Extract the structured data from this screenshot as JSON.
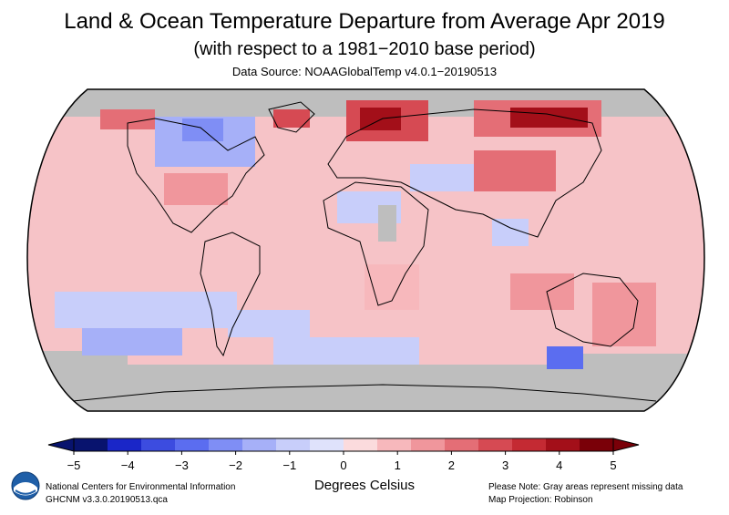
{
  "header": {
    "title": "Land & Ocean Temperature Departure from Average Apr 2019",
    "subtitle": "(with respect to a 1981−2010 base period)",
    "source": "Data Source: NOAAGlobalTemp v4.0.1−20190513"
  },
  "map": {
    "projection": "Robinson",
    "missing_color": "#bebebe",
    "coastline_color": "#000000"
  },
  "legend": {
    "ticks": [
      "−5",
      "−4",
      "−3",
      "−2",
      "−1",
      "0",
      "1",
      "2",
      "3",
      "4",
      "5"
    ],
    "colors": [
      "#08136e",
      "#1a26c8",
      "#3c4ce0",
      "#5b6df0",
      "#7f8ef5",
      "#a6b0f8",
      "#c8cefa",
      "#dfe2fb",
      "#fbdbdd",
      "#f7b8bc",
      "#f0969c",
      "#e46e76",
      "#d64a53",
      "#c42a33",
      "#a30f19",
      "#7a0008"
    ],
    "units": "Degrees Celsius"
  },
  "footer": {
    "org": "National Centers for Environmental Information",
    "dataset": "GHCNM v3.3.0.20190513.qca",
    "note": "Please Note: Gray areas represent missing data",
    "projection": "Map Projection: Robinson"
  }
}
